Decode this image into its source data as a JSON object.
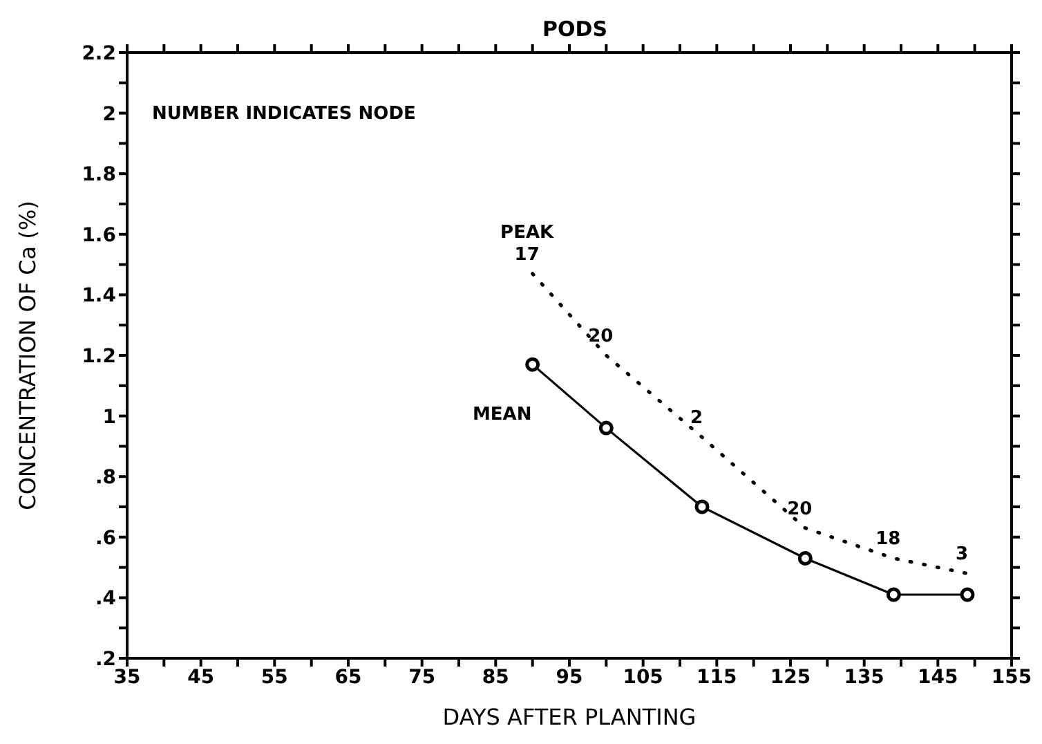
{
  "chart_data": {
    "type": "line",
    "title": "PODS",
    "xlabel": "DAYS AFTER PLANTING",
    "ylabel": "CONCENTRATION OF Ca (%)",
    "x": [
      90,
      100,
      113,
      127,
      139,
      149
    ],
    "series": [
      {
        "name": "PEAK",
        "color": "#000000",
        "line_style": "dotted",
        "marker": "none",
        "values": [
          1.47,
          1.2,
          0.93,
          0.63,
          0.53,
          0.48
        ]
      },
      {
        "name": "MEAN",
        "color": "#000000",
        "line_style": "solid",
        "marker": "circle",
        "values": [
          1.17,
          0.96,
          0.7,
          0.53,
          0.41,
          0.41
        ]
      }
    ],
    "xlim": [
      35,
      155
    ],
    "xticks": [
      35,
      {
        "value": 40,
        "label": null
      },
      45,
      {
        "value": 50,
        "label": null
      },
      55,
      {
        "value": 60,
        "label": null
      },
      65,
      {
        "value": 70,
        "label": null
      },
      75,
      {
        "value": 80,
        "label": null
      },
      85,
      {
        "value": 90,
        "label": null
      },
      95,
      {
        "value": 100,
        "label": null
      },
      105,
      {
        "value": 110,
        "label": null
      },
      115,
      {
        "value": 120,
        "label": null
      },
      125,
      {
        "value": 130,
        "label": null
      },
      135,
      {
        "value": 140,
        "label": null
      },
      145,
      {
        "value": 150,
        "label": null
      },
      155
    ],
    "ylim": [
      0.2,
      2.2
    ],
    "yticks": [
      {
        "value": 0.2,
        "label": ".2"
      },
      {
        "value": 0.3,
        "label": null
      },
      {
        "value": 0.4,
        "label": ".4"
      },
      {
        "value": 0.5,
        "label": null
      },
      {
        "value": 0.6,
        "label": ".6"
      },
      {
        "value": 0.7,
        "label": null
      },
      {
        "value": 0.8,
        "label": ".8"
      },
      {
        "value": 0.9,
        "label": null
      },
      1,
      {
        "value": 1.1,
        "label": null
      },
      1.2,
      {
        "value": 1.3,
        "label": null
      },
      1.4,
      {
        "value": 1.5,
        "label": null
      },
      1.6,
      {
        "value": 1.7,
        "label": null
      },
      1.8,
      {
        "value": 1.9,
        "label": null
      },
      2,
      {
        "value": 2.1,
        "label": null
      },
      2.2
    ],
    "annotations": [
      "NUMBER INDICATES NODE",
      {
        "text": "17",
        "x": 90,
        "y": 1.47
      },
      {
        "text": "20",
        "x": 100,
        "y": 1.2
      },
      {
        "text": "2",
        "x": 113,
        "y": 0.93
      },
      {
        "text": "20",
        "x": 127,
        "y": 0.63
      },
      {
        "text": "18",
        "x": 139,
        "y": 0.53
      },
      {
        "text": "3",
        "x": 149,
        "y": 0.48
      }
    ],
    "grid": false,
    "legend": false
  }
}
